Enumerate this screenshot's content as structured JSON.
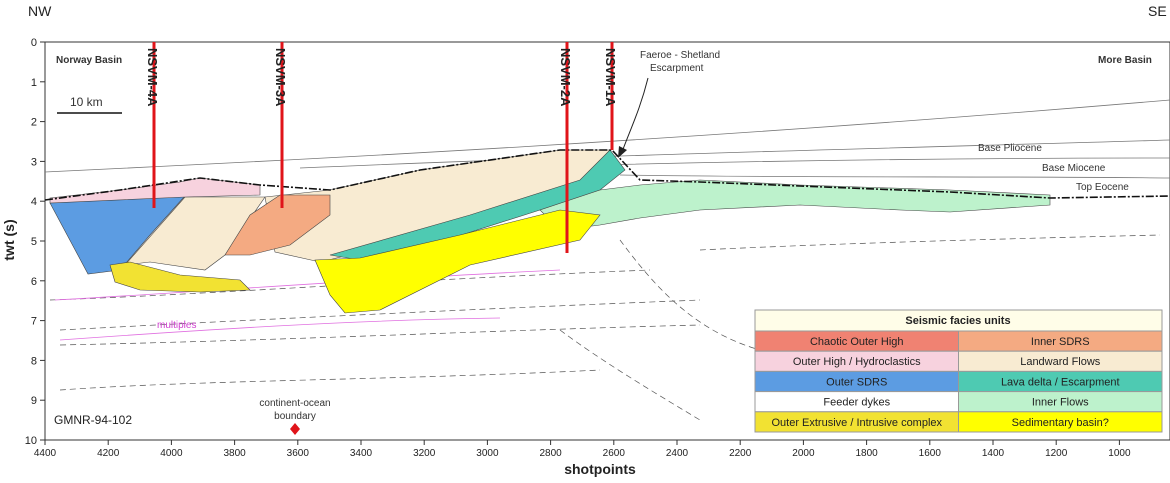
{
  "header": {
    "left": "NW",
    "right": "SE"
  },
  "axes": {
    "y_label": "twt (s)",
    "x_label": "shotpoints",
    "y_ticks": [
      0,
      1,
      2,
      3,
      4,
      5,
      6,
      7,
      8,
      9,
      10
    ],
    "x_ticks": [
      4400,
      4200,
      4000,
      3800,
      3600,
      3400,
      3200,
      3000,
      2800,
      2600,
      2400,
      2200,
      2000,
      1800,
      1600,
      1400,
      1200,
      1000
    ]
  },
  "wells": [
    "NSVM-4A",
    "NSVM-3A",
    "NSVM-2A",
    "NSVM-1A"
  ],
  "annotations": {
    "left_basin": "Norway Basin",
    "right_basin": "More Basin",
    "scale": "10 km",
    "escarpment": [
      "Faeroe - Shetland",
      "Escarpment"
    ],
    "base_pliocene": "Base Pliocene",
    "base_miocene": "Base Miocene",
    "top_eocene": "Top Eocene",
    "multiples": "multiples",
    "line_name": "GMNR-94-102",
    "boundary": [
      "continent-ocean",
      "boundary"
    ]
  },
  "legend": {
    "title": "Seismic facies units",
    "items": [
      {
        "label": "Chaotic Outer High",
        "color": "#f08272"
      },
      {
        "label": "Inner SDRS",
        "color": "#f4aa82"
      },
      {
        "label": "Outer High / Hydroclastics",
        "color": "#f7d2de"
      },
      {
        "label": "Landward Flows",
        "color": "#f8ebd2"
      },
      {
        "label": "Outer SDRS",
        "color": "#5c9ce2"
      },
      {
        "label": "Lava delta / Escarpment",
        "color": "#4ecab2"
      },
      {
        "label": "Feeder dykes",
        "color": "#ffffff"
      },
      {
        "label": "Inner Flows",
        "color": "#bdf2cc"
      },
      {
        "label": "Outer Extrusive / Intrusive complex",
        "color": "#f2e232"
      },
      {
        "label": "Sedimentary basin?",
        "color": "#ffff00"
      }
    ]
  }
}
